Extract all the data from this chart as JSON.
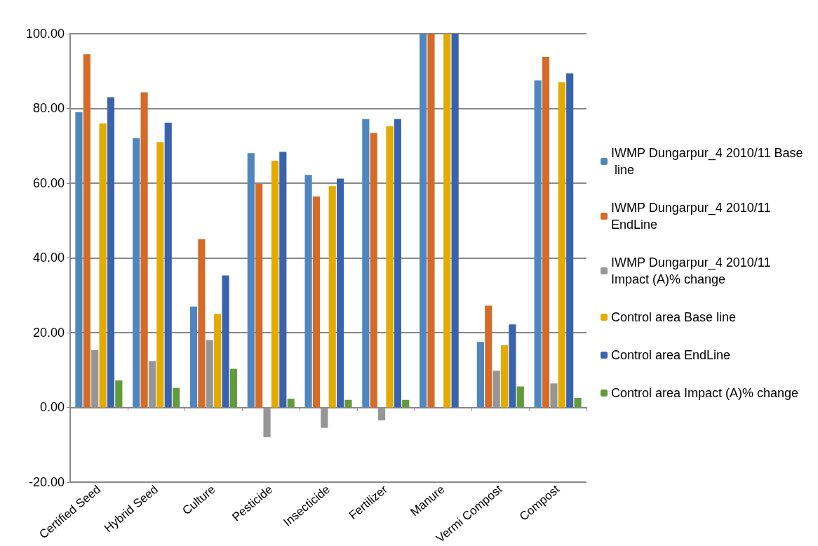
{
  "chart_data": {
    "type": "bar",
    "categories": [
      "Certified Seed",
      "Hybrid Seed",
      "Culture",
      "Pesticide",
      "Insecticide",
      "Fertilizer",
      "Manure",
      "Vermi Compost",
      "Compost"
    ],
    "series": [
      {
        "name": "IWMP Dungarpur_4 2010/11 Base line",
        "color": "#4f86c0",
        "values": [
          79,
          72,
          27,
          68,
          62.2,
          77.2,
          100,
          17.5,
          87.5
        ]
      },
      {
        "name": "IWMP Dungarpur_4 2010/11 EndLine",
        "color": "#d46b28",
        "values": [
          94.5,
          84.3,
          45,
          59.8,
          56.4,
          73.4,
          100,
          27.2,
          93.8
        ]
      },
      {
        "name": "IWMP Dungarpur_4 2010/11 Impact (A)% change",
        "color": "#969696",
        "values": [
          15.3,
          12.4,
          18,
          -8,
          -5.5,
          -3.5,
          0,
          9.8,
          6.4
        ]
      },
      {
        "name": "Control area Base line",
        "color": "#e3aa00",
        "values": [
          76,
          71,
          25,
          66,
          59.2,
          75.2,
          100,
          16.6,
          87
        ]
      },
      {
        "name": "Control area EndLine",
        "color": "#3a63ae",
        "values": [
          83,
          76.2,
          35.3,
          68.4,
          61.2,
          77.2,
          100,
          22.2,
          89.4
        ]
      },
      {
        "name": "Control area Impact (A)% change",
        "color": "#629a3c",
        "values": [
          7.2,
          5.2,
          10.3,
          2.3,
          2,
          2,
          0,
          5.6,
          2.5
        ]
      }
    ],
    "ylim": [
      -20,
      100
    ],
    "yticks": [
      {
        "value": -20,
        "label": "-20.00"
      },
      {
        "value": 0,
        "label": "0.00"
      },
      {
        "value": 20,
        "label": "20.00"
      },
      {
        "value": 40,
        "label": "40.00"
      },
      {
        "value": 60,
        "label": "60.00"
      },
      {
        "value": 80,
        "label": "80.00"
      },
      {
        "value": 100,
        "label": "100.00"
      }
    ],
    "grid": "y",
    "legend": "right"
  }
}
